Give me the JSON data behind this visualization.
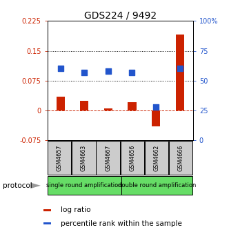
{
  "title": "GDS224 / 9492",
  "samples": [
    "GSM4657",
    "GSM4663",
    "GSM4667",
    "GSM4656",
    "GSM4662",
    "GSM4666"
  ],
  "log_ratio": [
    0.035,
    0.025,
    0.005,
    0.02,
    -0.04,
    0.19
  ],
  "percentile": [
    60,
    57,
    58,
    57,
    28,
    60
  ],
  "ylim_left": [
    -0.075,
    0.225
  ],
  "ylim_right": [
    0,
    100
  ],
  "yticks_left": [
    -0.075,
    0,
    0.075,
    0.15,
    0.225
  ],
  "yticks_right": [
    0,
    25,
    50,
    75,
    100
  ],
  "ytick_labels_left": [
    "-0.075",
    "0",
    "0.075",
    "0.15",
    "0.225"
  ],
  "ytick_labels_right": [
    "0",
    "25",
    "50",
    "75",
    "100%"
  ],
  "hlines": [
    0.075,
    0.15
  ],
  "zero_line": 0,
  "bar_color": "#cc2200",
  "dot_color": "#2255cc",
  "group1_label": "single round amplification",
  "group2_label": "double round amplification",
  "protocol_label": "protocol",
  "legend1": "log ratio",
  "legend2": "percentile rank within the sample",
  "bar_width": 0.35,
  "dot_size": 28,
  "group_bg": "#66dd66",
  "sample_bg": "#cccccc",
  "title_fontsize": 10,
  "tick_fontsize": 7,
  "label_fontsize": 7.5
}
